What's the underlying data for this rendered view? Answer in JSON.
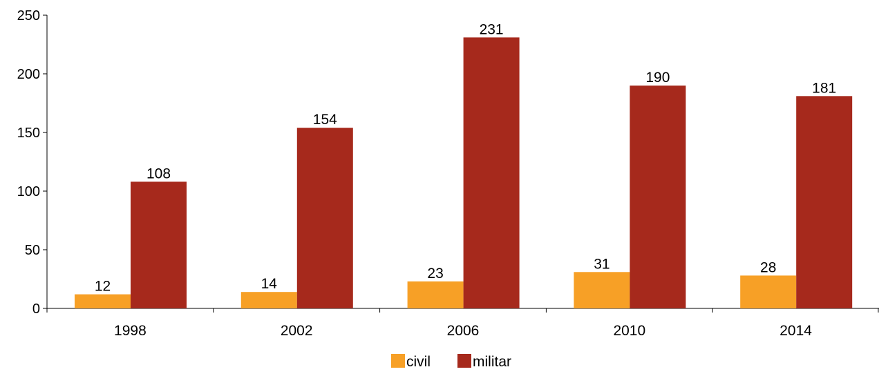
{
  "chart_data": {
    "type": "bar",
    "categories": [
      "1998",
      "2002",
      "2006",
      "2010",
      "2014"
    ],
    "series": [
      {
        "name": "civil",
        "values": [
          12,
          14,
          23,
          31,
          28
        ],
        "color": "#f7a026"
      },
      {
        "name": "militar",
        "values": [
          108,
          154,
          231,
          190,
          181
        ],
        "color": "#a6291c"
      }
    ],
    "ylim": [
      0,
      250
    ],
    "yticks": [
      0,
      50,
      100,
      150,
      200,
      250
    ],
    "title": "",
    "xlabel": "",
    "ylabel": "",
    "grid": false,
    "legend_position": "bottom-center",
    "data_labels": true
  }
}
